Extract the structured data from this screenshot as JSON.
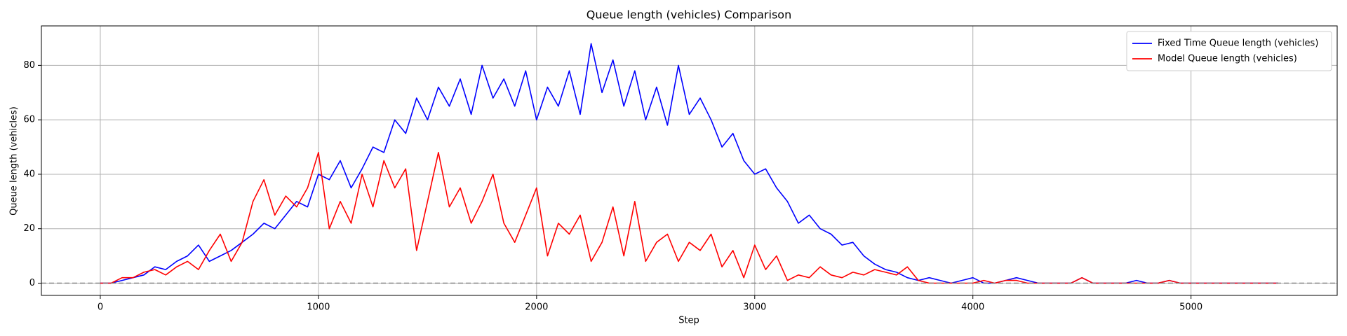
{
  "chart_data": {
    "type": "line",
    "title": "Queue length (vehicles) Comparison",
    "xlabel": "Step",
    "ylabel": "Queue length (vehicles)",
    "x": [
      0,
      50,
      100,
      150,
      200,
      250,
      300,
      350,
      400,
      450,
      500,
      550,
      600,
      650,
      700,
      750,
      800,
      850,
      900,
      950,
      1000,
      1050,
      1100,
      1150,
      1200,
      1250,
      1300,
      1350,
      1400,
      1450,
      1500,
      1550,
      1600,
      1650,
      1700,
      1750,
      1800,
      1850,
      1900,
      1950,
      2000,
      2050,
      2100,
      2150,
      2200,
      2250,
      2300,
      2350,
      2400,
      2450,
      2500,
      2550,
      2600,
      2650,
      2700,
      2750,
      2800,
      2850,
      2900,
      2950,
      3000,
      3050,
      3100,
      3150,
      3200,
      3250,
      3300,
      3350,
      3400,
      3450,
      3500,
      3550,
      3600,
      3650,
      3700,
      3750,
      3800,
      3850,
      3900,
      3950,
      4000,
      4050,
      4100,
      4150,
      4200,
      4250,
      4300,
      4350,
      4400,
      4450,
      4500,
      4550,
      4600,
      4650,
      4700,
      4750,
      4800,
      4850,
      4900,
      4950,
      5000,
      5050,
      5100,
      5150,
      5200,
      5250,
      5300,
      5350,
      5400
    ],
    "series": [
      {
        "name": "Fixed Time Queue length (vehicles)",
        "color": "#0000ff",
        "values": [
          0,
          0,
          1,
          2,
          3,
          6,
          5,
          8,
          10,
          14,
          8,
          10,
          12,
          15,
          18,
          22,
          20,
          25,
          30,
          28,
          40,
          38,
          45,
          35,
          42,
          50,
          48,
          60,
          55,
          68,
          60,
          72,
          65,
          75,
          62,
          80,
          68,
          75,
          65,
          78,
          60,
          72,
          65,
          78,
          62,
          88,
          70,
          82,
          65,
          78,
          60,
          72,
          58,
          80,
          62,
          68,
          60,
          50,
          55,
          45,
          40,
          42,
          35,
          30,
          22,
          25,
          20,
          18,
          14,
          15,
          10,
          7,
          5,
          4,
          2,
          1,
          2,
          1,
          0,
          1,
          2,
          0,
          0,
          1,
          2,
          1,
          0,
          0,
          0,
          0,
          2,
          0,
          0,
          0,
          0,
          1,
          0,
          0,
          1,
          0,
          0,
          0,
          0,
          0,
          0,
          0,
          0,
          0,
          0
        ]
      },
      {
        "name": "Model Queue length (vehicles)",
        "color": "#ff0000",
        "values": [
          0,
          0,
          2,
          2,
          4,
          5,
          3,
          6,
          8,
          5,
          12,
          18,
          8,
          15,
          30,
          38,
          25,
          32,
          28,
          35,
          48,
          20,
          30,
          22,
          40,
          28,
          45,
          35,
          42,
          12,
          30,
          48,
          28,
          35,
          22,
          30,
          40,
          22,
          15,
          25,
          35,
          10,
          22,
          18,
          25,
          8,
          15,
          28,
          10,
          30,
          8,
          15,
          18,
          8,
          15,
          12,
          18,
          6,
          12,
          2,
          14,
          5,
          10,
          1,
          3,
          2,
          6,
          3,
          2,
          4,
          3,
          5,
          4,
          3,
          6,
          1,
          0,
          0,
          0,
          0,
          0,
          1,
          0,
          1,
          1,
          0,
          0,
          0,
          0,
          0,
          2,
          0,
          0,
          0,
          0,
          0,
          0,
          0,
          1,
          0,
          0,
          0,
          0,
          0,
          0,
          0,
          0,
          0,
          0
        ]
      }
    ],
    "xlim": [
      -270,
      5670
    ],
    "ylim": [
      -4.5,
      94.5
    ],
    "xticks": [
      0,
      1000,
      2000,
      3000,
      4000,
      5000
    ],
    "yticks": [
      0,
      20,
      40,
      60,
      80
    ],
    "hline": 0,
    "grid": true,
    "legend": "upper right"
  }
}
